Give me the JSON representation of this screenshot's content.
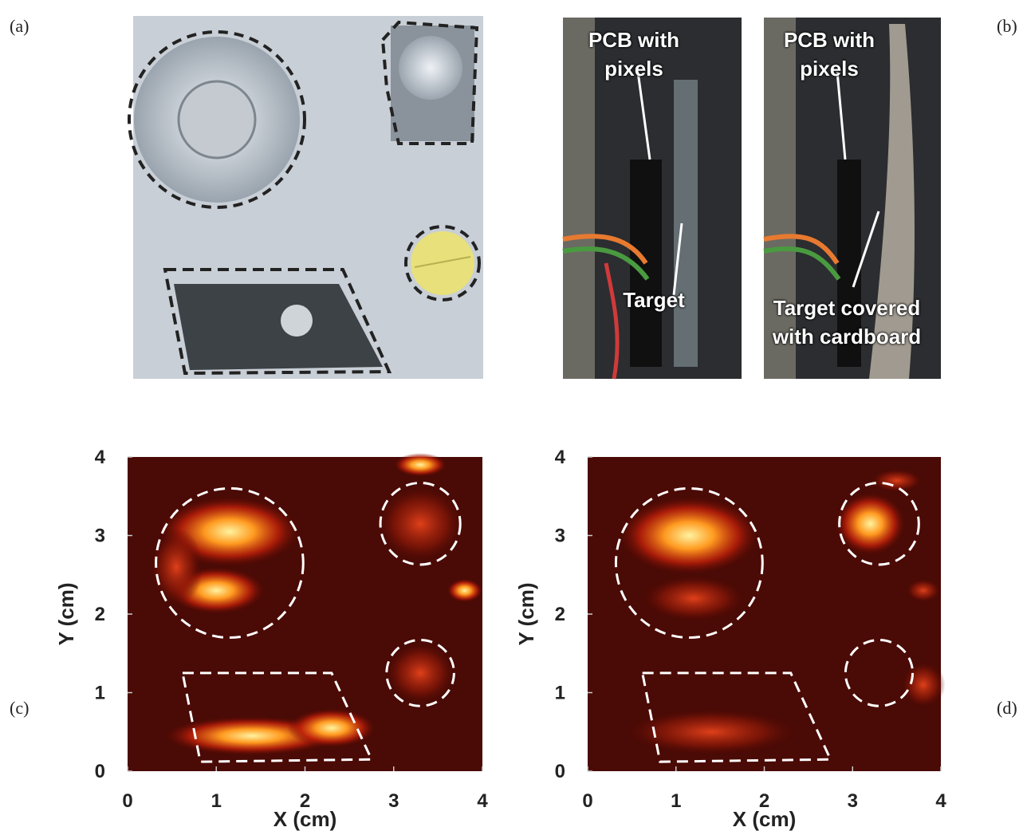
{
  "panel_labels": [
    "(a)",
    "(b)",
    "(c)",
    "(d)"
  ],
  "photo_b": {
    "left": {
      "pcb_label": "PCB with pixels",
      "target_label": "Target"
    },
    "right": {
      "pcb_label": "PCB with pixels",
      "target_label": "Target covered with cardboard"
    }
  },
  "plots": [
    {
      "xlabel": "X (cm)",
      "ylabel": "Y (cm)",
      "xlim": [
        0,
        4
      ],
      "ylim": [
        0,
        4
      ],
      "xticks": [
        0,
        1,
        2,
        3,
        4
      ],
      "yticks": [
        0,
        1,
        2,
        3,
        4
      ]
    },
    {
      "xlabel": "X (cm)",
      "ylabel": "Y (cm)",
      "xlim": [
        0,
        4
      ],
      "ylim": [
        0,
        4
      ],
      "xticks": [
        0,
        1,
        2,
        3,
        4
      ],
      "yticks": [
        0,
        1,
        2,
        3,
        4
      ]
    }
  ]
}
